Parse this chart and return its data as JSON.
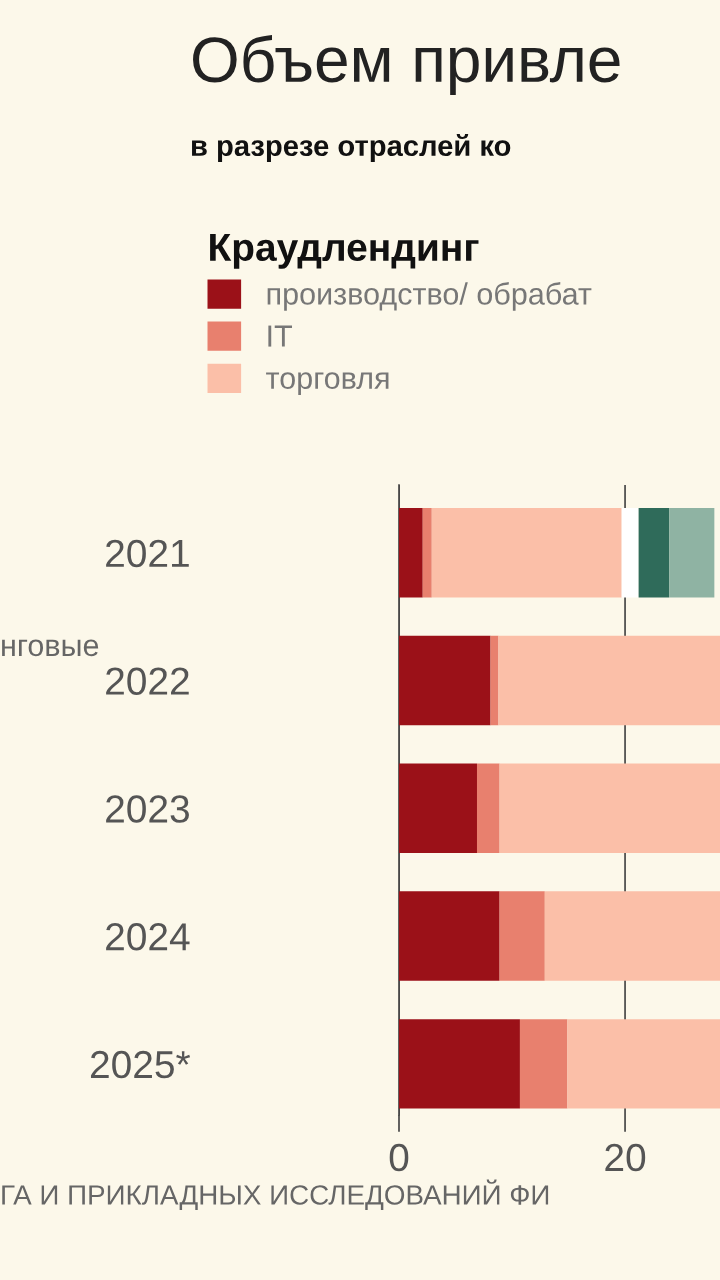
{
  "chart_data": {
    "type": "bar",
    "orientation": "horizontal",
    "stacked": true,
    "title": "Объем привле",
    "subtitle": "в разрезе отраслей ко",
    "legend_title": "Краудлендинг",
    "categories": [
      "2021",
      "2022",
      "2023",
      "2024",
      "2025*"
    ],
    "series": [
      {
        "name": "производство/ обрабат",
        "color": "#9b1118",
        "values": [
          2.1,
          8.1,
          6.9,
          8.9,
          10.7
        ]
      },
      {
        "name": "IT",
        "color": "#e8806e",
        "values": [
          0.8,
          0.7,
          2.0,
          4.0,
          4.2
        ]
      },
      {
        "name": "торговля",
        "color": "#fbbfa8",
        "values": [
          16.8,
          19.6,
          19.5,
          15.5,
          13.5
        ]
      },
      {
        "color": "#ffffff",
        "values": [
          1.5,
          null,
          null,
          null,
          null
        ]
      },
      {
        "color": "#2f6b5a",
        "values": [
          2.7,
          null,
          null,
          null,
          null
        ]
      },
      {
        "color": "#8fb3a3",
        "values": [
          4.0,
          null,
          null,
          null,
          null
        ]
      }
    ],
    "xlim": [
      0,
      28.4
    ],
    "xticks": [
      0,
      20
    ],
    "grid": "x",
    "legend": "top left",
    "annotations": [
      "нговые",
      "ГА И ПРИКЛАДНЫХ ИССЛЕДОВАНИЙ ФИ"
    ]
  }
}
